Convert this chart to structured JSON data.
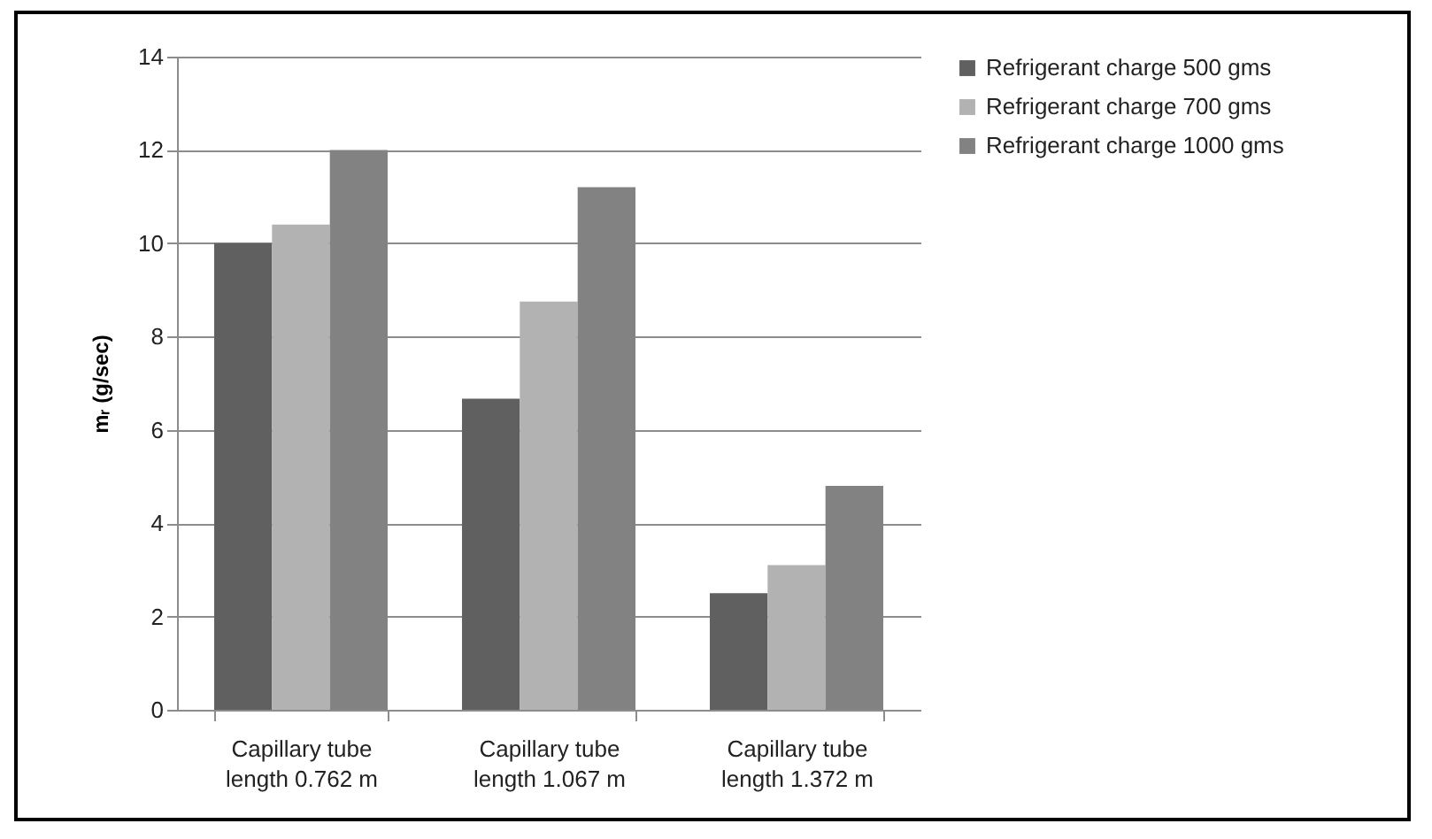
{
  "chart_data": {
    "type": "bar",
    "ylabel": "mᵣ (g/sec)",
    "categories": [
      "Capillary tube length 0.762 m",
      "Capillary tube length 1.067 m",
      "Capillary tube length 1.372 m"
    ],
    "series": [
      {
        "name": "Refrigerant charge 500 gms",
        "color": "#606060",
        "values": [
          10,
          6.67,
          2.5
        ]
      },
      {
        "name": "Refrigerant charge 700 gms",
        "color": "#b2b2b2",
        "values": [
          10.4,
          8.75,
          3.1
        ]
      },
      {
        "name": "Refrigerant charge 1000 gms",
        "color": "#828282",
        "values": [
          12,
          11.2,
          4.8
        ]
      }
    ],
    "ylim": [
      0,
      14
    ],
    "yticks": [
      0,
      2,
      4,
      6,
      8,
      10,
      12,
      14
    ],
    "grid": "y",
    "legend": "right"
  }
}
